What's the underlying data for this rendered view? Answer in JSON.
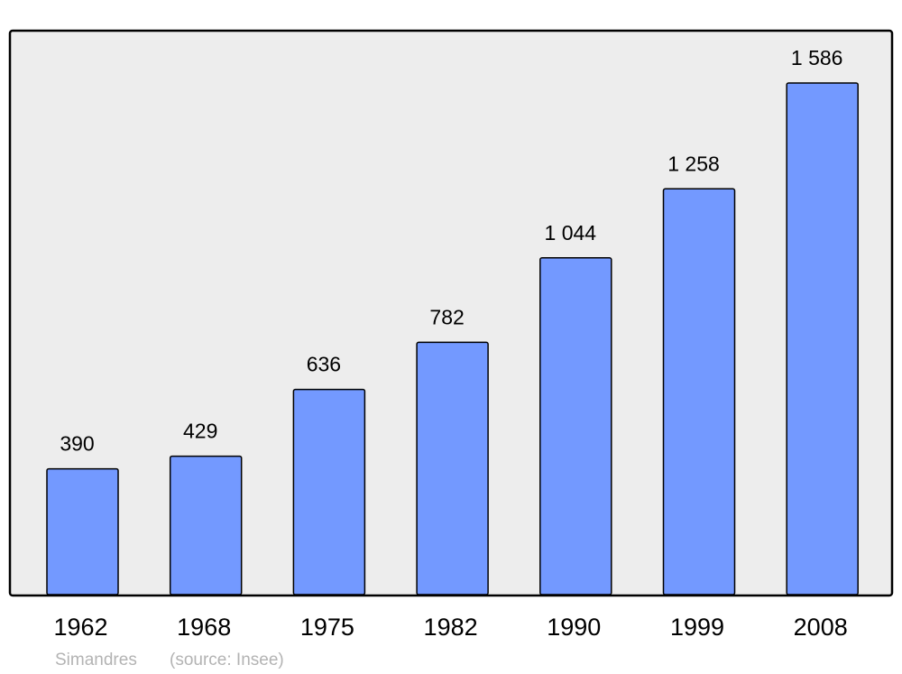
{
  "chart_data": {
    "type": "bar",
    "categories": [
      "1962",
      "1968",
      "1975",
      "1982",
      "1990",
      "1999",
      "2008"
    ],
    "values": [
      390,
      429,
      636,
      782,
      1044,
      1258,
      1586
    ],
    "value_labels": [
      "390",
      "429",
      "636",
      "782",
      "1 044",
      "1 258",
      "1 586"
    ],
    "title": "",
    "xlabel": "",
    "ylabel": "",
    "grid": false,
    "footer": {
      "place": "Simandres",
      "source": "(source: Insee)"
    },
    "colors": {
      "bar": "#7399ff",
      "plot_background": "#ededed",
      "footer_text": "#b3b3b3"
    }
  }
}
